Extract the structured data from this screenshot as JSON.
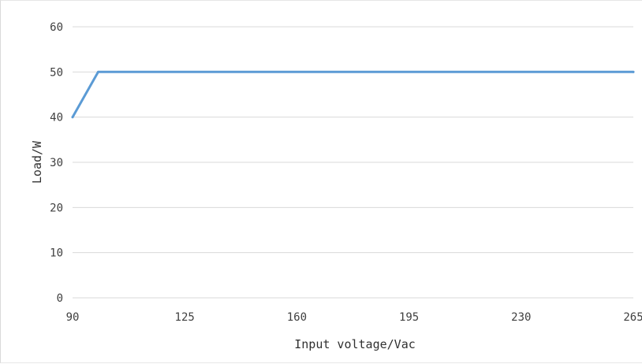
{
  "chart_data": {
    "type": "line",
    "title": "",
    "xlabel": "Input voltage/Vac",
    "ylabel": "Load/W",
    "xlim": [
      90,
      265
    ],
    "ylim": [
      0,
      60
    ],
    "x_ticks": [
      "90",
      "125",
      "160",
      "195",
      "230",
      "265"
    ],
    "y_ticks": [
      "0",
      "10",
      "20",
      "30",
      "40",
      "50",
      "60"
    ],
    "grid": "horizontal",
    "legend": "none",
    "series": [
      {
        "color": "#5b9bd5",
        "points": [
          [
            90,
            40
          ],
          [
            98,
            50
          ],
          [
            265,
            50
          ]
        ]
      }
    ]
  }
}
